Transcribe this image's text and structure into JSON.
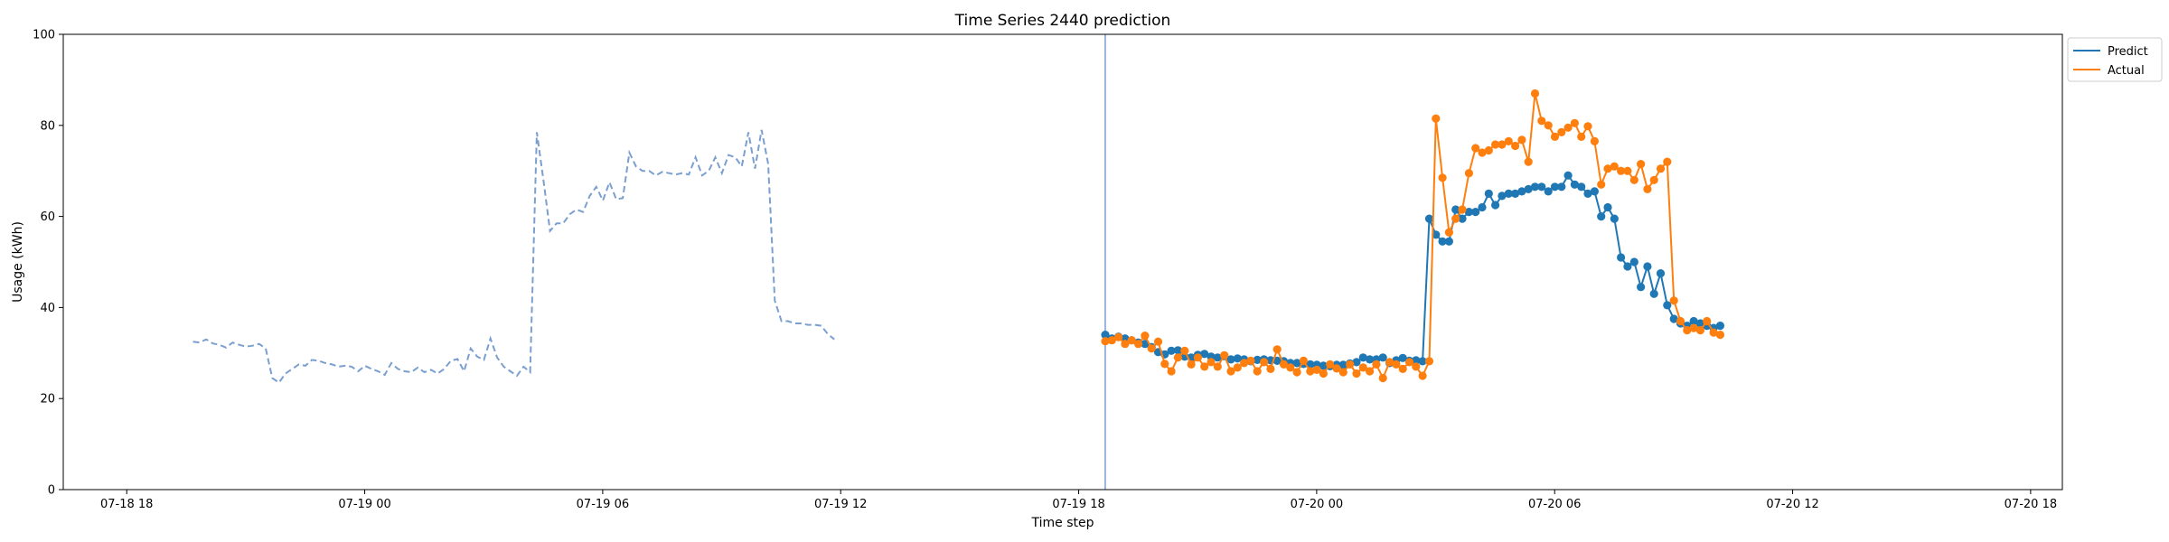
{
  "chart_data": {
    "type": "line",
    "title": "Time Series 2440 prediction",
    "xlabel": "Time step",
    "ylabel": "Usage (kWh)",
    "ylim": [
      0,
      100
    ],
    "yticks": [
      "0",
      "20",
      "40",
      "60",
      "80",
      "100"
    ],
    "xticks": [
      "07-18 18",
      "07-19 00",
      "07-19 06",
      "07-19 12",
      "07-19 18",
      "07-20 00",
      "07-20 06",
      "07-20 12",
      "07-20 18"
    ],
    "grid": false,
    "legend_position": "upper-right-outside",
    "time_unit": "hour",
    "x_domain_hours": [
      -1.6,
      48.8
    ],
    "prediction_start_hour": 24.67,
    "colors": {
      "history": "#7b9fcf",
      "predict": "#1f77b4",
      "actual": "#ff7f0e",
      "divider": "#7b9fcf"
    },
    "history": {
      "style": "dashed",
      "start_hour": 1.67,
      "step_hours": 0.1667,
      "values": [
        32.5,
        32.3,
        33.0,
        32.1,
        31.8,
        31.2,
        32.3,
        31.8,
        31.4,
        31.6,
        32.0,
        31.0,
        24.5,
        23.5,
        25.5,
        26.5,
        27.5,
        27.2,
        28.5,
        28.3,
        27.8,
        27.5,
        27.0,
        27.2,
        27.0,
        26.0,
        27.2,
        26.5,
        26.0,
        25.2,
        27.8,
        26.5,
        26.0,
        25.8,
        26.8,
        25.8,
        26.3,
        25.5,
        26.5,
        28.3,
        28.7,
        26.0,
        31.0,
        29.2,
        28.5,
        33.2,
        29.0,
        27.0,
        26.0,
        25.0,
        27.0,
        25.8,
        78.5,
        68.0,
        56.8,
        58.5,
        58.5,
        60.5,
        61.5,
        61.0,
        64.5,
        66.5,
        63.5,
        67.5,
        63.8,
        64.0,
        74.0,
        71.0,
        70.0,
        70.0,
        69.0,
        69.8,
        69.5,
        69.2,
        69.5,
        69.2,
        73.0,
        69.0,
        70.0,
        73.0,
        69.5,
        73.5,
        73.0,
        71.0,
        78.5,
        70.5,
        79.0,
        71.5,
        41.5,
        37.0,
        37.0,
        36.5,
        36.5,
        36.2,
        36.2,
        36.0,
        34.2,
        33.0
      ]
    },
    "series": [
      {
        "name": "Predict",
        "start_hour": 24.67,
        "step_hours": 0.1667,
        "values": [
          34.0,
          33.2,
          33.6,
          33.2,
          32.8,
          32.3,
          32.0,
          31.3,
          30.2,
          29.7,
          30.5,
          30.6,
          29.2,
          29.0,
          29.6,
          29.8,
          29.2,
          29.0,
          29.3,
          28.6,
          28.8,
          28.6,
          28.2,
          28.5,
          28.6,
          28.4,
          28.3,
          28.2,
          27.8,
          27.8,
          27.6,
          27.5,
          27.4,
          27.2,
          27.1,
          27.4,
          27.4,
          27.7,
          28.0,
          29.0,
          28.6,
          28.6,
          29.0,
          27.8,
          28.4,
          28.9,
          28.3,
          28.4,
          28.2,
          59.5,
          56.0,
          54.5,
          54.5,
          61.5,
          59.5,
          61.0,
          61.0,
          62.0,
          65.0,
          62.5,
          64.5,
          65.0,
          65.0,
          65.5,
          66.0,
          66.5,
          66.5,
          65.5,
          66.5,
          66.5,
          69.0,
          67.0,
          66.5,
          65.0,
          65.5,
          60.0,
          62.0,
          59.5,
          51.0,
          49.0,
          50.0,
          44.5,
          49.0,
          43.0,
          47.5,
          40.5,
          37.5,
          36.5,
          36.0,
          37.0,
          36.5,
          36.0,
          35.5,
          36.0
        ]
      },
      {
        "name": "Actual",
        "start_hour": 24.67,
        "step_hours": 0.1667,
        "values": [
          32.6,
          32.8,
          33.5,
          32.0,
          32.8,
          32.0,
          33.8,
          31.0,
          32.5,
          27.6,
          26.0,
          29.0,
          30.5,
          27.5,
          29.0,
          27.0,
          28.0,
          27.0,
          29.5,
          26.0,
          26.8,
          27.8,
          28.3,
          26.0,
          28.0,
          26.5,
          30.8,
          27.5,
          26.8,
          25.8,
          28.3,
          26.0,
          26.3,
          25.5,
          27.5,
          26.6,
          25.8,
          27.5,
          25.5,
          26.8,
          26.0,
          27.5,
          24.5,
          28.0,
          27.5,
          26.5,
          28.0,
          27.0,
          25.0,
          28.2,
          81.5,
          68.5,
          56.5,
          59.5,
          61.5,
          69.5,
          75.0,
          74.0,
          74.5,
          75.8,
          75.8,
          76.5,
          75.5,
          76.8,
          72.0,
          87.0,
          81.0,
          80.0,
          77.5,
          78.5,
          79.5,
          80.5,
          77.5,
          79.8,
          76.5,
          67.0,
          70.5,
          71.0,
          70.0,
          70.0,
          68.0,
          71.5,
          66.0,
          68.0,
          70.5,
          72.0,
          41.5,
          37.0,
          35.0,
          35.5,
          35.0,
          37.0,
          34.5,
          34.0
        ]
      }
    ]
  }
}
